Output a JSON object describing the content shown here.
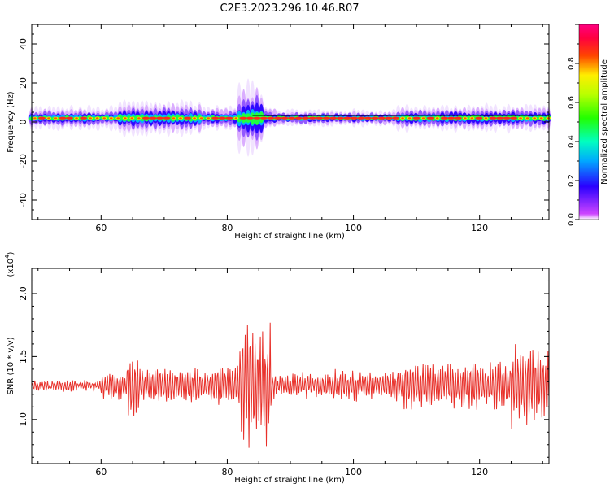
{
  "figure_title": "C2E3.2023.296.10.46.R07",
  "chart_data": [
    {
      "type": "heatmap",
      "xlabel": "Height of straight line (km)",
      "ylabel": "Frequency (Hz)",
      "xlim": [
        49,
        131
      ],
      "ylim": [
        -50,
        50
      ],
      "xticks": [
        "60",
        "80",
        "100",
        "120"
      ],
      "yticks": [
        "40",
        "20",
        "0",
        "-20",
        "-40"
      ],
      "colorbar": {
        "label": "Normalized spectral amplitude",
        "ticks": [
          "0.0",
          "0.2",
          "0.4",
          "0.6",
          "0.8"
        ],
        "range": [
          0,
          1
        ],
        "colormap": "rainbow (magenta-blue-cyan-green-yellow-red-pink)"
      },
      "band": {
        "center_frequency_hz": 2,
        "notes": "Narrow high-amplitude band near 2 Hz across all heights; broader spread between 82 and 86 km (about -6 to 10 Hz)."
      }
    },
    {
      "type": "line",
      "xlabel": "Height of straight line (km)",
      "ylabel": "SNR (10 * v/v)",
      "scale_label": "(x10",
      "scale_exp": "4",
      "scale_close": ")",
      "xlim": [
        49,
        131
      ],
      "ylim": [
        0.65,
        2.2
      ],
      "xticks": [
        "60",
        "80",
        "100",
        "120"
      ],
      "yticks": [
        "2.0",
        "1.5",
        "1.0"
      ],
      "series": [
        {
          "color": "#e8302a",
          "baseline": 1.27
        }
      ]
    }
  ]
}
